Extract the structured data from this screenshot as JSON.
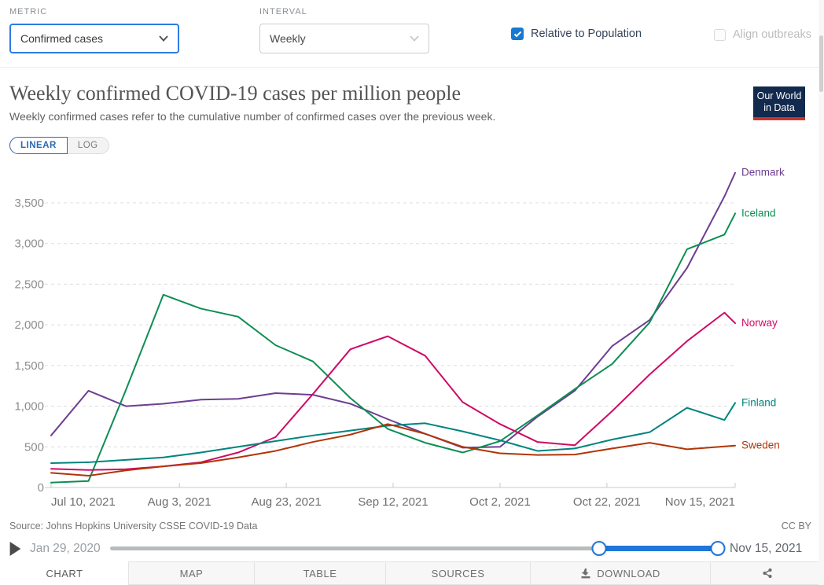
{
  "controls": {
    "metric_label": "METRIC",
    "metric_value": "Confirmed cases",
    "interval_label": "INTERVAL",
    "interval_value": "Weekly",
    "relative_label": "Relative to Population",
    "relative_checked": true,
    "align_label": "Align outbreaks",
    "align_checked": false,
    "align_enabled": false
  },
  "header": {
    "title": "Weekly confirmed COVID-19 cases per million people",
    "subtitle": "Weekly confirmed cases refer to the cumulative number of confirmed cases over the previous week.",
    "logo_line1": "Our World",
    "logo_line2": "in Data"
  },
  "scale_toggle": {
    "linear_label": "LINEAR",
    "log_label": "LOG",
    "selected": "LINEAR"
  },
  "chart_data": {
    "type": "line",
    "title": "Weekly confirmed COVID-19 cases per million people",
    "x": [
      "Jul 10, 2021",
      "Jul 17, 2021",
      "Jul 24, 2021",
      "Jul 31, 2021",
      "Aug 7, 2021",
      "Aug 14, 2021",
      "Aug 21, 2021",
      "Aug 28, 2021",
      "Sep 4, 2021",
      "Sep 11, 2021",
      "Sep 18, 2021",
      "Sep 25, 2021",
      "Oct 2, 2021",
      "Oct 9, 2021",
      "Oct 16, 2021",
      "Oct 23, 2021",
      "Oct 30, 2021",
      "Nov 6, 2021",
      "Nov 13, 2021",
      "Nov 15, 2021"
    ],
    "x_day_offsets": [
      0,
      7,
      14,
      21,
      28,
      35,
      42,
      49,
      56,
      63,
      70,
      77,
      84,
      91,
      98,
      105,
      112,
      119,
      126,
      128
    ],
    "series": [
      {
        "name": "Denmark",
        "color": "#6d3e91",
        "values": [
          640,
          1190,
          1000,
          1030,
          1080,
          1090,
          1160,
          1140,
          1030,
          840,
          660,
          490,
          500,
          870,
          1190,
          1740,
          2060,
          2700,
          3580,
          3870
        ]
      },
      {
        "name": "Iceland",
        "color": "#0d8e53",
        "values": [
          60,
          80,
          1200,
          2370,
          2200,
          2100,
          1750,
          1550,
          1100,
          720,
          550,
          430,
          570,
          885,
          1210,
          1520,
          2030,
          2930,
          3110,
          3370
        ]
      },
      {
        "name": "Norway",
        "color": "#cf0a66",
        "values": [
          230,
          215,
          225,
          260,
          310,
          430,
          620,
          1150,
          1700,
          1860,
          1620,
          1050,
          780,
          560,
          520,
          940,
          1390,
          1800,
          2150,
          2020
        ]
      },
      {
        "name": "Finland",
        "color": "#00847e",
        "values": [
          300,
          310,
          340,
          370,
          430,
          500,
          570,
          640,
          700,
          760,
          790,
          690,
          580,
          450,
          480,
          590,
          680,
          980,
          830,
          1040
        ]
      },
      {
        "name": "Sweden",
        "color": "#b13507",
        "values": [
          180,
          145,
          210,
          260,
          300,
          370,
          450,
          560,
          650,
          780,
          660,
          500,
          420,
          400,
          405,
          480,
          550,
          470,
          505,
          515
        ]
      }
    ],
    "ylim": [
      0,
      3900
    ],
    "yticks": [
      0,
      500,
      1000,
      1500,
      2000,
      2500,
      3000,
      3500
    ],
    "ytick_labels": [
      "0",
      "500",
      "1,000",
      "1,500",
      "2,000",
      "2,500",
      "3,000",
      "3,500"
    ],
    "xtick_labels": [
      "Jul 10, 2021",
      "Aug 3, 2021",
      "Aug 23, 2021",
      "Sep 12, 2021",
      "Oct 2, 2021",
      "Oct 22, 2021",
      "Nov 15, 2021"
    ],
    "xtick_day_offsets": [
      0,
      24,
      44,
      64,
      84,
      104,
      128
    ],
    "grid": "horizontal dashed",
    "legend_position": "right end-of-line labels"
  },
  "footer": {
    "source": "Source: Johns Hopkins University CSSE COVID-19 Data",
    "license": "CC BY"
  },
  "timeline": {
    "start_label": "Jan 29, 2020",
    "end_label": "Nov 15, 2021",
    "range_start_pct": 80,
    "range_end_pct": 99.4
  },
  "tabs": [
    {
      "label": "CHART",
      "active": true
    },
    {
      "label": "MAP",
      "active": false
    },
    {
      "label": "TABLE",
      "active": false
    },
    {
      "label": "SOURCES",
      "active": false
    },
    {
      "label": "DOWNLOAD",
      "active": false,
      "icon": "download-icon"
    },
    {
      "label": "",
      "active": false,
      "icon": "share-icon"
    }
  ],
  "colors": {
    "primary_blue": "#2176d9",
    "focus_border_blue": "#2e7ce0",
    "checkbox_blue": "#1779d1",
    "linear_blue": "#2d68b2",
    "logo_navy": "#122a4d",
    "logo_red": "#cd3228"
  }
}
